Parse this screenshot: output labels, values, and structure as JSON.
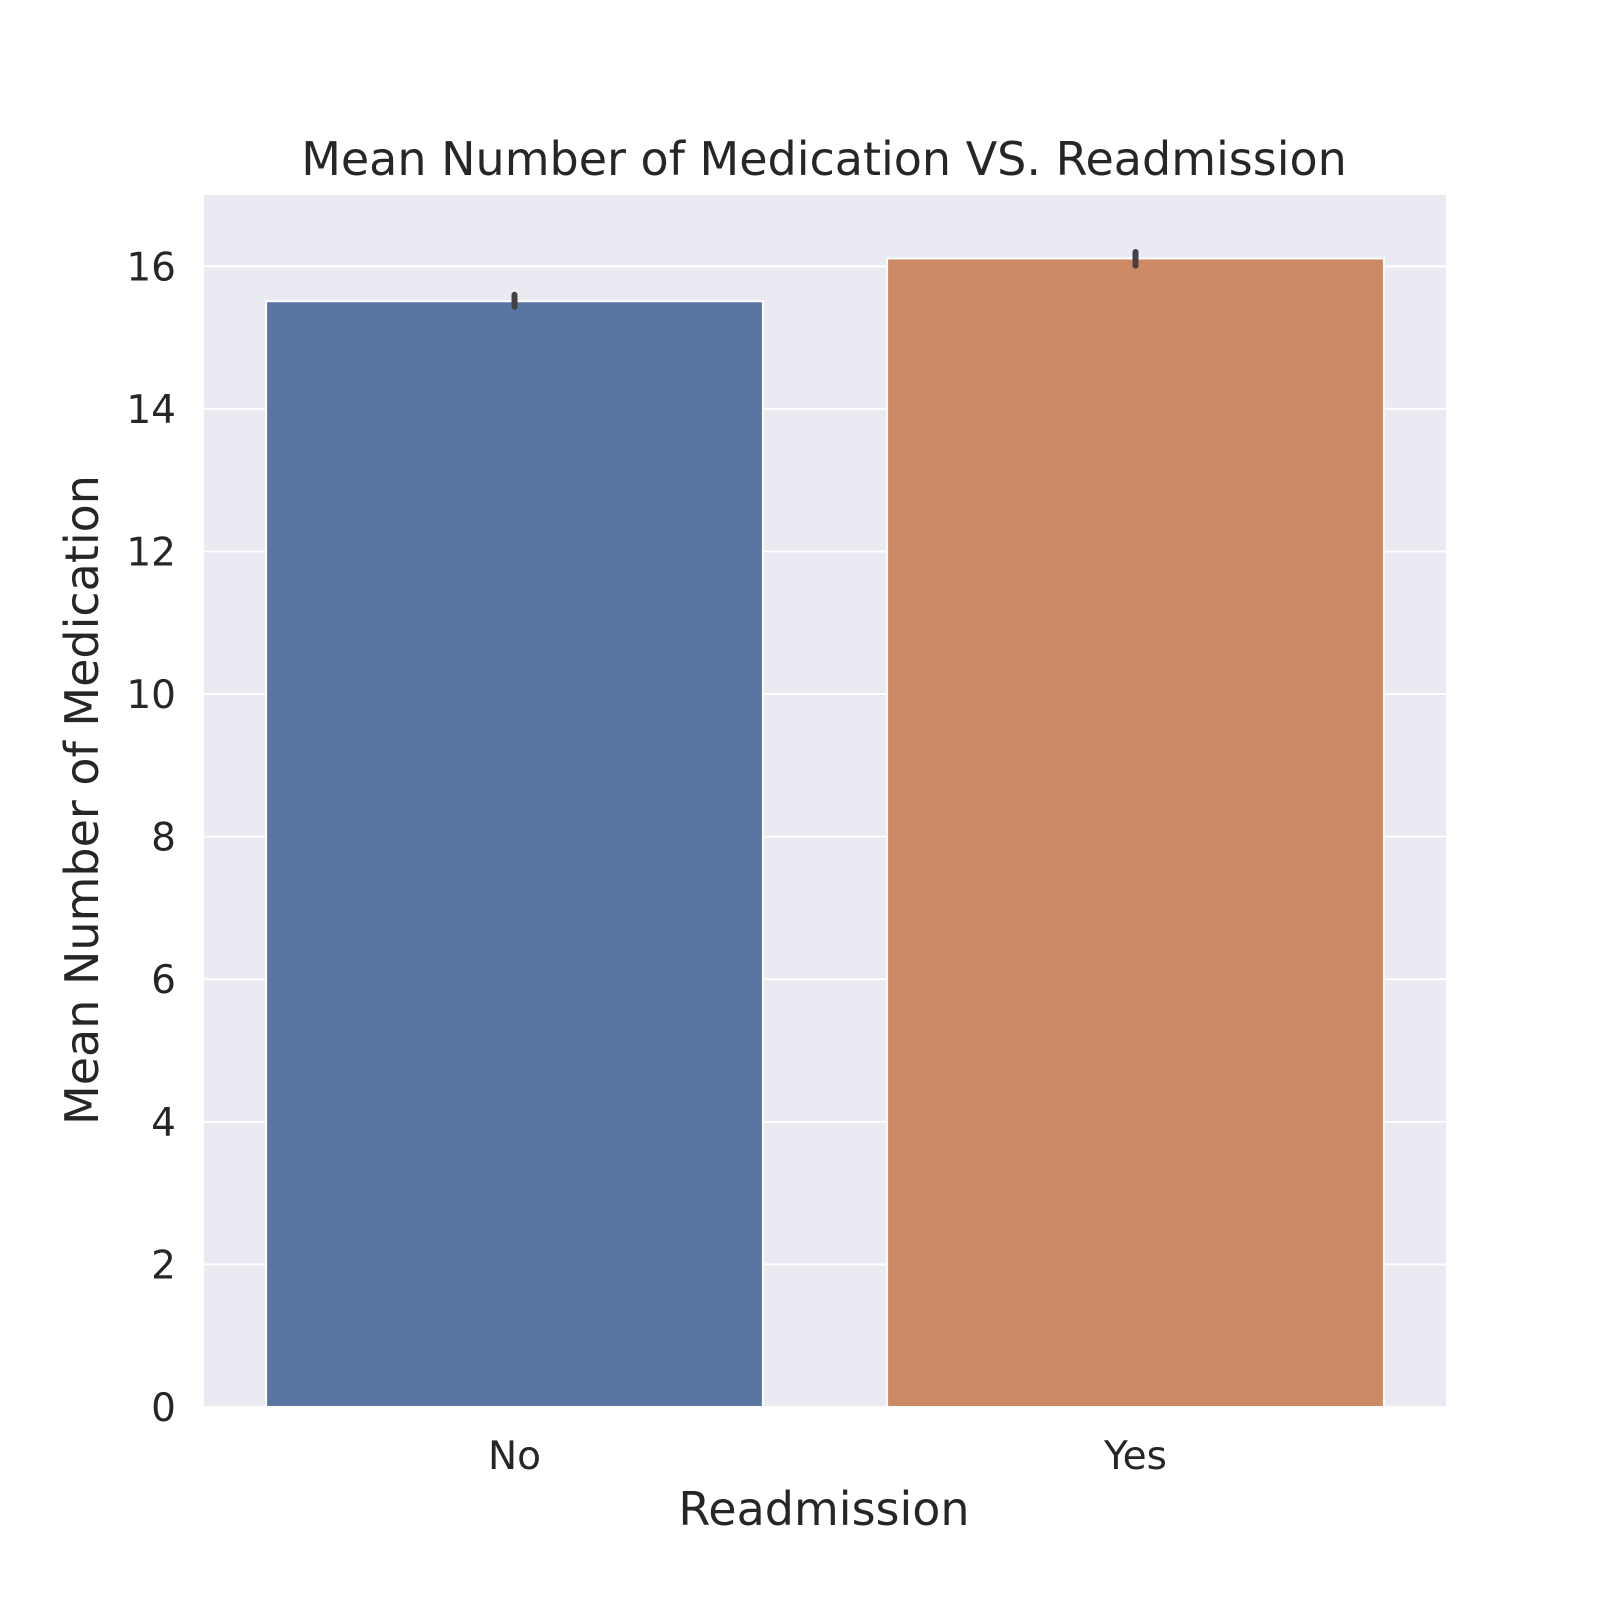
{
  "chart_data": {
    "type": "bar",
    "title": "Mean Number of Medication VS. Readmission",
    "xlabel": "Readmission",
    "ylabel": "Mean Number of Medication",
    "categories": [
      "No",
      "Yes"
    ],
    "values": [
      15.51,
      16.11
    ],
    "error_bars": [
      [
        15.43,
        15.6
      ],
      [
        16.01,
        16.2
      ]
    ],
    "colors": [
      "#5975a4",
      "#cc8963"
    ],
    "ylim": [
      0,
      17
    ],
    "yticks": [
      0,
      2,
      4,
      6,
      8,
      10,
      12,
      14,
      16
    ],
    "grid": true,
    "background": "#eaeaf2"
  }
}
